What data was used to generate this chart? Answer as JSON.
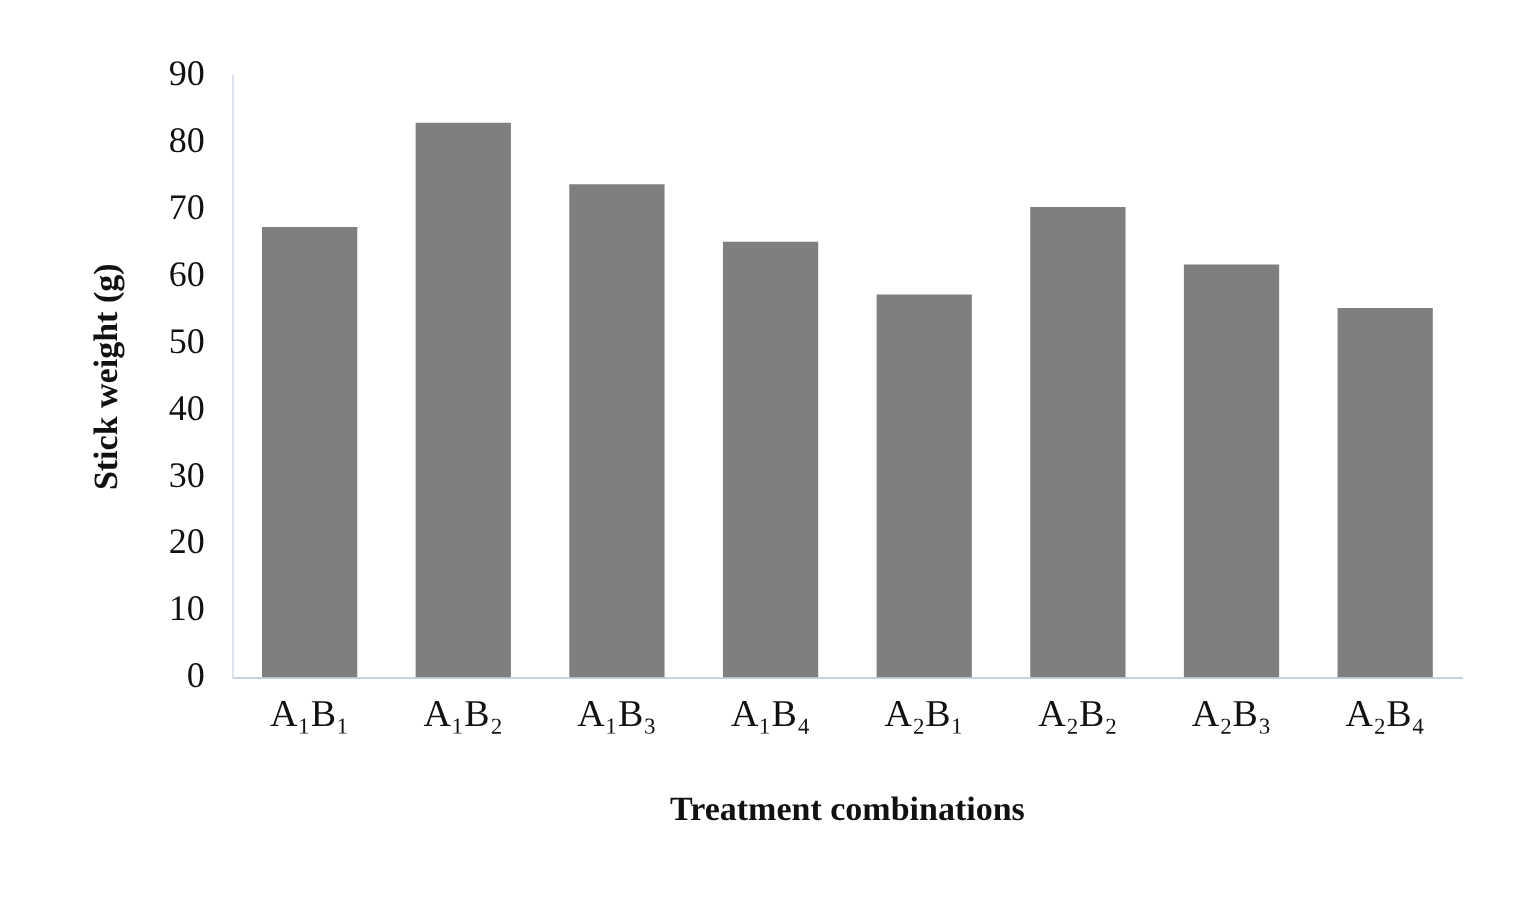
{
  "chart_data": {
    "type": "bar",
    "xlabel": "Treatment combinations",
    "ylabel": "Stick weight (g)",
    "categories": [
      "A₁B₁",
      "A₁B₂",
      "A₁B₃",
      "A₁B₄",
      "A₂B₁",
      "A₂B₂",
      "A₂B₃",
      "A₂B₄"
    ],
    "values": [
      67.4,
      83,
      73.8,
      65.2,
      57.3,
      70.4,
      61.8,
      55.3
    ],
    "color": "#7f7f7f",
    "ylim": [
      0,
      90
    ],
    "yticks": [
      0,
      10,
      20,
      30,
      40,
      50,
      60,
      70,
      80,
      90
    ],
    "grid": false,
    "legend": false
  }
}
